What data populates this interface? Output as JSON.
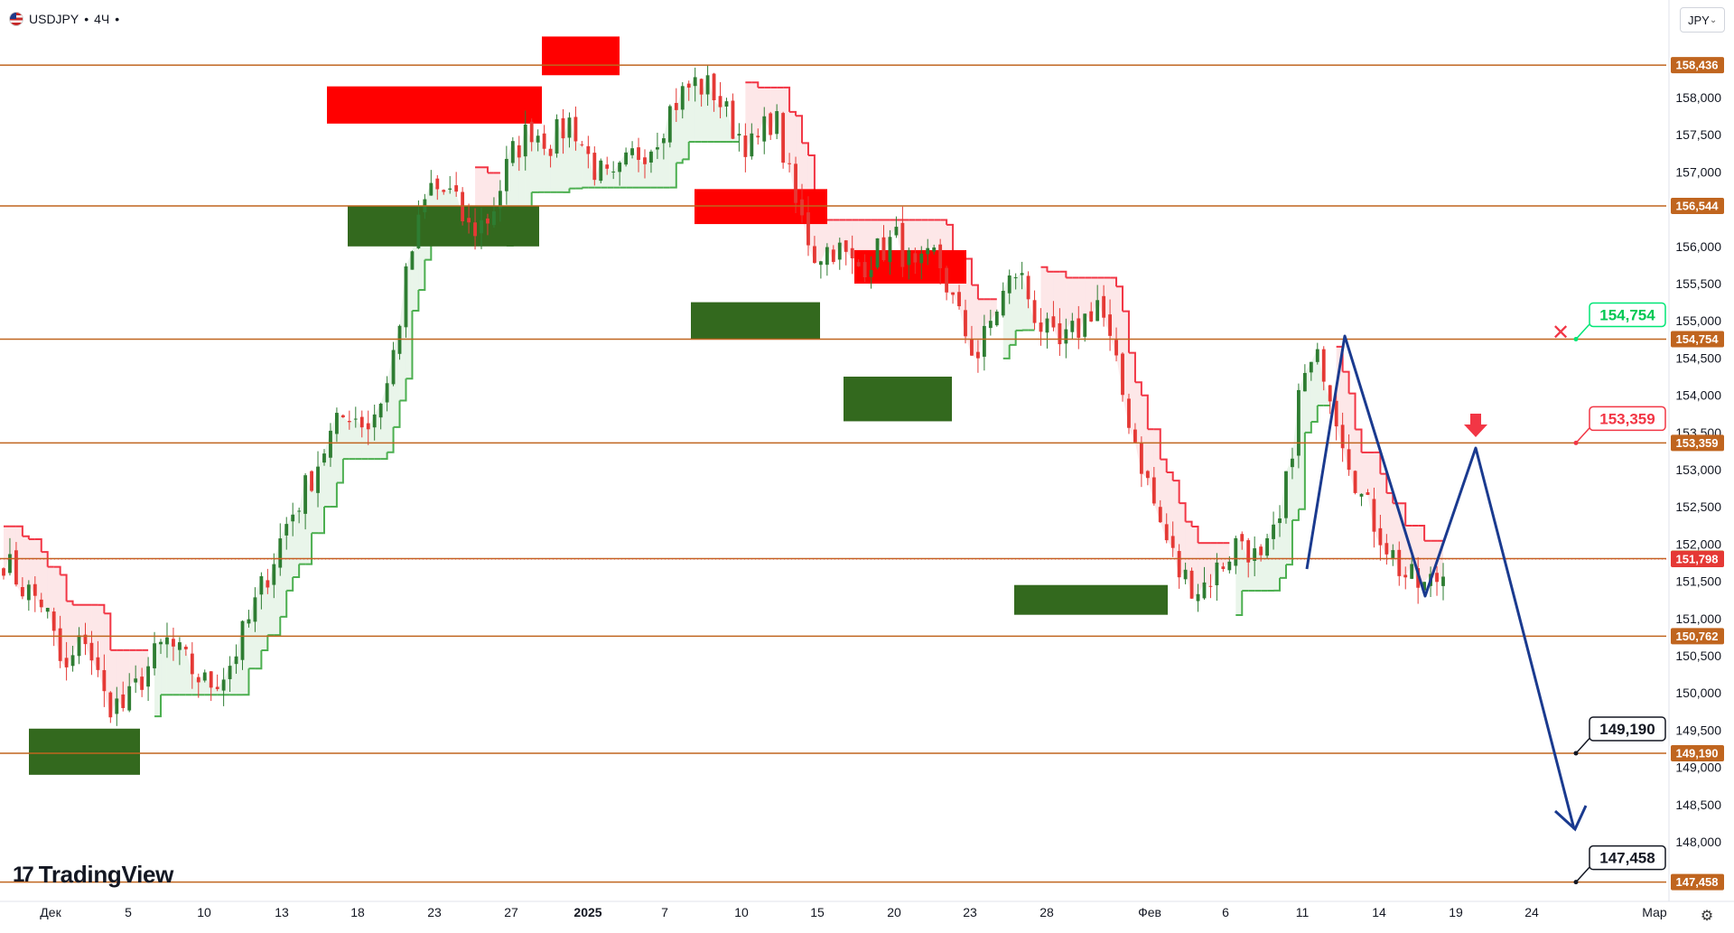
{
  "header": {
    "symbol": "USDJPY",
    "interval": "4Ч",
    "flag_icon": "us-flag-icon"
  },
  "currency_selector": {
    "value": "JPY"
  },
  "logo": {
    "text": "TradingView"
  },
  "settings_icon": "gear-icon",
  "colors": {
    "level_line": "#c0651f",
    "bull": "#2e7d32",
    "bear": "#e53935",
    "supply_zone": "#ff0000",
    "demand_zone": "#33691e",
    "projection": "#1a3a8f",
    "trail_up": "#4caf50",
    "trail_down": "#f23645"
  },
  "chart_data": {
    "type": "candlestick",
    "symbol": "USDJPY",
    "timeframe": "4Ч",
    "y_axis_ticks": [
      "158,000",
      "157,500",
      "157,000",
      "156,500",
      "156,000",
      "155,500",
      "155,000",
      "154,500",
      "154,000",
      "153,500",
      "153,000",
      "152,500",
      "152,000",
      "151,500",
      "151,000",
      "150,500",
      "150,000",
      "149,500",
      "149,000",
      "148,500",
      "148,000"
    ],
    "x_axis_ticks": [
      "Дек",
      "5",
      "10",
      "13",
      "18",
      "23",
      "27",
      "2025",
      "7",
      "10",
      "15",
      "20",
      "23",
      "28",
      "Фев",
      "6",
      "11",
      "14",
      "19",
      "24",
      "Мар"
    ],
    "ylim": [
      147.4,
      158.7
    ],
    "horizontal_levels": [
      "158,436",
      "156,544",
      "154,754",
      "153,359",
      "151,805",
      "151,798",
      "150,762",
      "149,190",
      "147,458"
    ],
    "price_labels": [
      {
        "text": "154,754",
        "style": "green"
      },
      {
        "text": "153,359",
        "style": "red"
      },
      {
        "text": "149,190",
        "style": "black"
      },
      {
        "text": "147,458",
        "style": "black"
      }
    ],
    "approx_close_path": [
      151.8,
      151.4,
      151.2,
      150.2,
      150.8,
      149.9,
      149.8,
      150.3,
      150.7,
      150.4,
      150.1,
      150.3,
      150.9,
      151.6,
      152.3,
      152.8,
      153.4,
      153.8,
      153.6,
      154.2,
      155.8,
      156.8,
      156.7,
      156.2,
      156.4,
      157.2,
      157.6,
      157.4,
      157.7,
      157.1,
      156.8,
      157.2,
      157.4,
      157.9,
      158.2,
      158.1,
      157.6,
      157.3,
      157.8,
      156.6,
      155.9,
      156.0,
      155.7,
      155.9,
      156.1,
      155.6,
      155.9,
      155.1,
      154.5,
      155.2,
      155.7,
      155.0,
      154.6,
      154.9,
      155.3,
      154.2,
      153.2,
      152.3,
      151.6,
      151.4,
      151.7,
      152.1,
      151.7,
      152.3,
      154.2,
      154.5,
      153.5,
      152.6,
      152.1,
      151.6,
      151.4,
      151.6
    ],
    "demand_zones": [
      {
        "from": 149.52,
        "to": 148.9
      },
      {
        "from": 156.55,
        "to": 156.0
      },
      {
        "from": 155.25,
        "to": 154.75
      },
      {
        "from": 154.25,
        "to": 153.65
      },
      {
        "from": 151.45,
        "to": 151.05
      }
    ],
    "supply_zones": [
      {
        "from": 158.15,
        "to": 157.65
      },
      {
        "from": 158.82,
        "to": 158.3
      },
      {
        "from": 156.77,
        "to": 156.3
      },
      {
        "from": 155.95,
        "to": 155.5
      }
    ]
  }
}
